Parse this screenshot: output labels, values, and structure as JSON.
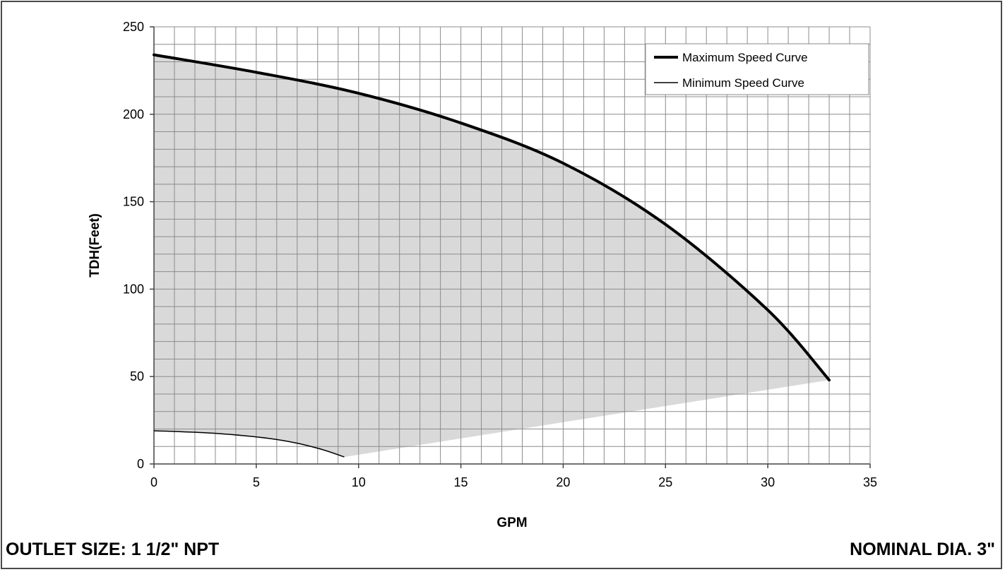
{
  "chart_data": {
    "type": "line",
    "xlabel": "GPM",
    "ylabel": "TDH(Feet)",
    "xlim": [
      0,
      35
    ],
    "ylim": [
      0,
      250
    ],
    "x_ticks": [
      0,
      5,
      10,
      15,
      20,
      25,
      30,
      35
    ],
    "y_ticks": [
      0,
      50,
      100,
      150,
      200,
      250
    ],
    "x_ticks_labels": [
      "0",
      "5",
      "10",
      "15",
      "20",
      "25",
      "30",
      "35"
    ],
    "y_ticks_labels": [
      "0",
      "50",
      "100",
      "150",
      "200",
      "250"
    ],
    "grid": true,
    "minor_grid_x_step": 1,
    "minor_grid_y_step": 10,
    "legend_position": "top-right",
    "operating_region_color": "#d9d9d9",
    "series": [
      {
        "name": "Maximum Speed Curve",
        "line": "thick",
        "color": "#000000",
        "x": [
          0,
          5,
          10,
          15,
          20,
          25,
          30,
          33
        ],
        "y": [
          234,
          224,
          212,
          195,
          172,
          137,
          88,
          48
        ]
      },
      {
        "name": "Minimum Speed Curve",
        "line": "thin",
        "color": "#000000",
        "x": [
          0,
          3,
          6,
          8,
          9.3
        ],
        "y": [
          19,
          17.5,
          14,
          9,
          4
        ]
      }
    ]
  },
  "footer": {
    "left": "OUTLET SIZE: 1 1/2\" NPT",
    "right": "NOMINAL DIA. 3\""
  }
}
